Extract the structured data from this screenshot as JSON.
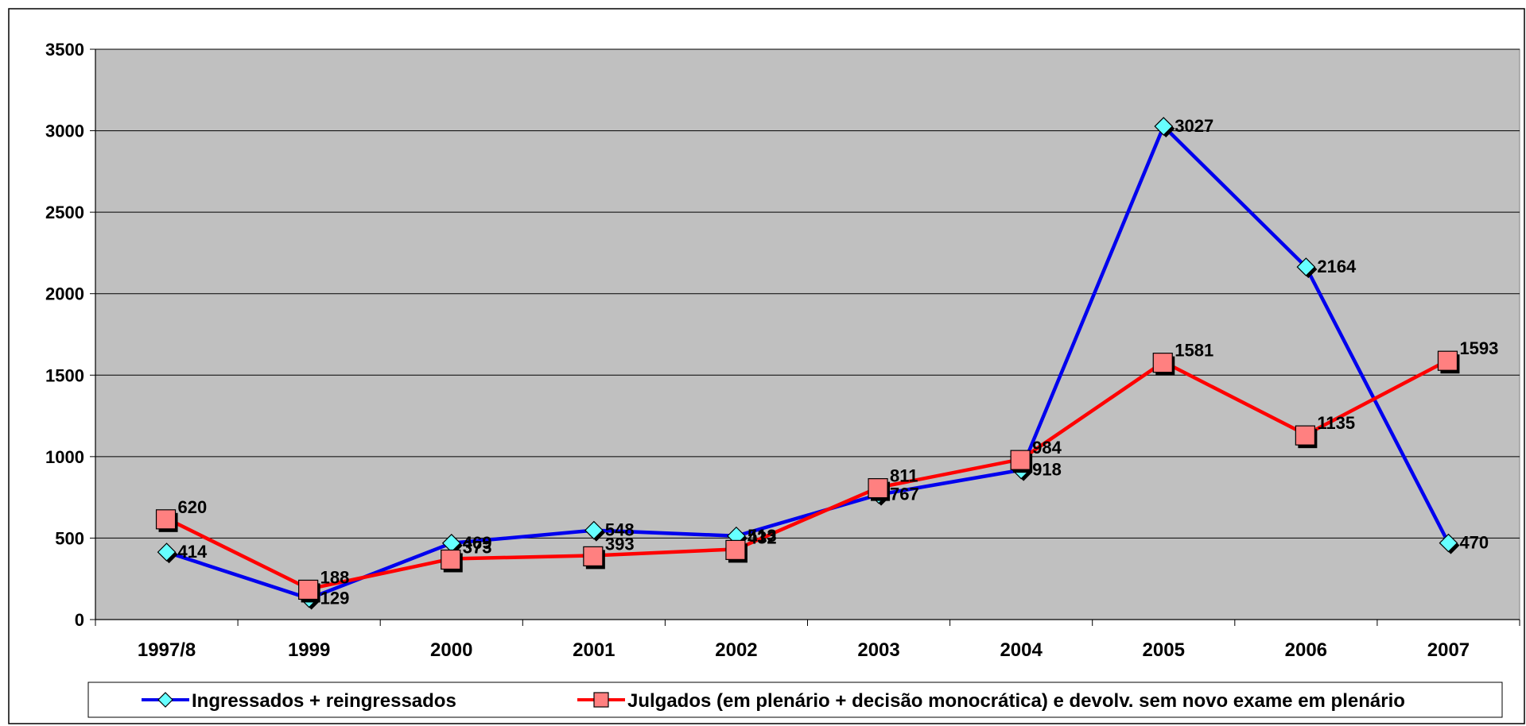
{
  "chart_data": {
    "type": "line",
    "categories": [
      "1997/8",
      "1999",
      "2000",
      "2001",
      "2002",
      "2003",
      "2004",
      "2005",
      "2006",
      "2007"
    ],
    "series": [
      {
        "name": "Ingressados + reingressados",
        "values": [
          414,
          129,
          469,
          548,
          513,
          767,
          918,
          3027,
          2164,
          470
        ],
        "color": "#0000ee",
        "marker": "diamond",
        "marker_fill": "#66ffff"
      },
      {
        "name": "Julgados (em plenário + decisão monocrática) e devolv. sem novo exame em plenário",
        "values": [
          620,
          188,
          373,
          393,
          432,
          811,
          984,
          1581,
          1135,
          1593
        ],
        "color": "#ff0000",
        "marker": "square",
        "marker_fill": "#ff8080"
      }
    ],
    "ylim": [
      0,
      3500
    ],
    "yticks": [
      0,
      500,
      1000,
      1500,
      2000,
      2500,
      3000,
      3500
    ],
    "grid": true,
    "plot_background": "#c0c0c0",
    "legend_position": "bottom",
    "xlabel": "",
    "ylabel": "",
    "title": ""
  }
}
